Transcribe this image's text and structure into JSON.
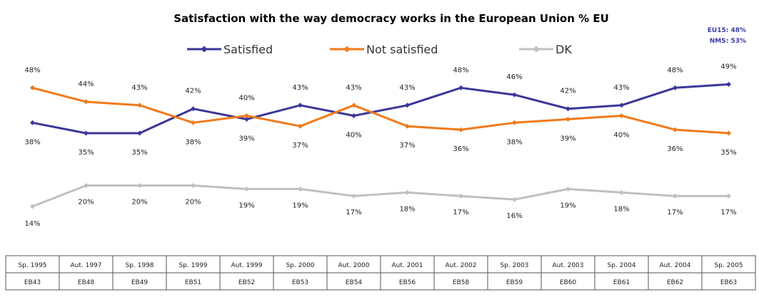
{
  "chart_data": {
    "type": "line",
    "title": "Satisfaction with the way democracy works in the European Union % EU",
    "notes": [
      "EU15: 48%",
      "NMS: 53%"
    ],
    "categories": [
      {
        "date": "Sp. 1995",
        "survey": "EB43"
      },
      {
        "date": "Aut. 1997",
        "survey": "EB48"
      },
      {
        "date": "Sp. 1998",
        "survey": "EB49"
      },
      {
        "date": "Sp. 1999",
        "survey": "EB51"
      },
      {
        "date": "Aut. 1999",
        "survey": "EB52"
      },
      {
        "date": "Sp. 2000",
        "survey": "EB53"
      },
      {
        "date": "Aut. 2000",
        "survey": "EB54"
      },
      {
        "date": "Aut. 2001",
        "survey": "EB56"
      },
      {
        "date": "Aut. 2002",
        "survey": "EB58"
      },
      {
        "date": "Sp. 2003",
        "survey": "EB59"
      },
      {
        "date": "Aut. 2003",
        "survey": "EB60"
      },
      {
        "date": "Sp. 2004",
        "survey": "EB61"
      },
      {
        "date": "Aut. 2004",
        "survey": "EB62"
      },
      {
        "date": "Sp. 2005",
        "survey": "EB63"
      }
    ],
    "series": [
      {
        "name": "Satisfied",
        "color": "#3b3699",
        "marker": "diamond",
        "values": [
          38,
          35,
          35,
          42,
          39,
          43,
          40,
          43,
          48,
          46,
          42,
          43,
          48,
          49
        ]
      },
      {
        "name": "Not satisfied",
        "color": "#f07a1a",
        "marker": "diamond",
        "values": [
          48,
          44,
          43,
          38,
          40,
          37,
          43,
          37,
          36,
          38,
          39,
          40,
          36,
          35
        ]
      },
      {
        "name": "DK",
        "color": "#c0c0c0",
        "marker": "diamond",
        "values": [
          14,
          20,
          20,
          20,
          19,
          19,
          17,
          18,
          17,
          16,
          19,
          18,
          17,
          17
        ]
      }
    ],
    "value_suffix": "%",
    "grid": false,
    "legend_position": "top"
  }
}
